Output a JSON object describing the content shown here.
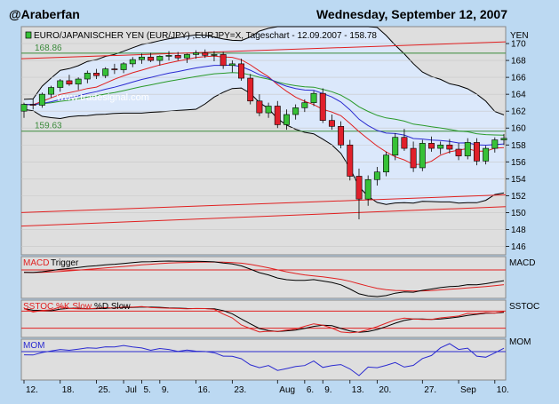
{
  "header": {
    "left": "@Araberfan",
    "right": "Wednesday, September 12, 2007"
  },
  "colors": {
    "background": "#bcd9f2",
    "pane": "#dedede",
    "band_fill": "#dbe8fb",
    "up_candle": "#37c137",
    "down_candle": "#e0202b",
    "ma_long": "#2a9a2a",
    "ma_mid": "#e02020",
    "ma_short": "#2a2ad0",
    "bollinger": "#000000",
    "level_line": "#3a8a3a",
    "channel": "#e02020"
  },
  "chart_data": [
    {
      "type": "candlestick",
      "title": "EURO/JAPANISCHER YEN (EUR/JPY) ,EURJPY=X, Tageschart - 12.09.2007 - 158.78",
      "ylabel": "YEN",
      "watermark": "www.tradesignal.com",
      "ylim": [
        145,
        172
      ],
      "y_ticks": [
        "146",
        "148",
        "150",
        "152",
        "154",
        "156",
        "158",
        "160",
        "162",
        "164",
        "166",
        "168",
        "170"
      ],
      "x_ticks": [
        "12.",
        "18.",
        "25.",
        "Jul",
        "5.",
        "9.",
        "16.",
        "23.",
        "Aug",
        "6.",
        "9.",
        "13.",
        "20.",
        "27.",
        "Sep",
        "10."
      ],
      "levels": [
        {
          "label": "168.86",
          "value": 168.86
        },
        {
          "label": "159.63",
          "value": 159.63
        }
      ],
      "candles": [
        [
          162.0,
          163.0,
          161.2,
          162.8
        ],
        [
          162.8,
          163.5,
          162.2,
          162.7
        ],
        [
          162.7,
          164.2,
          162.4,
          164.0
        ],
        [
          164.0,
          165.0,
          163.6,
          164.8
        ],
        [
          164.8,
          165.8,
          164.3,
          165.6
        ],
        [
          165.6,
          166.3,
          165.0,
          165.2
        ],
        [
          165.2,
          166.0,
          164.5,
          165.8
        ],
        [
          165.8,
          166.8,
          165.3,
          166.5
        ],
        [
          166.5,
          167.0,
          165.8,
          166.2
        ],
        [
          166.2,
          167.2,
          165.9,
          167.0
        ],
        [
          167.0,
          167.6,
          166.4,
          166.9
        ],
        [
          166.9,
          167.8,
          166.5,
          167.6
        ],
        [
          167.6,
          168.4,
          167.2,
          168.1
        ],
        [
          168.1,
          168.8,
          167.6,
          168.4
        ],
        [
          168.4,
          168.9,
          167.8,
          168.0
        ],
        [
          168.0,
          168.6,
          167.4,
          168.5
        ],
        [
          168.5,
          169.1,
          168.0,
          168.6
        ],
        [
          168.6,
          169.0,
          168.0,
          168.3
        ],
        [
          168.3,
          168.8,
          167.7,
          168.7
        ],
        [
          168.7,
          169.2,
          168.2,
          168.9
        ],
        [
          168.9,
          169.3,
          168.3,
          168.6
        ],
        [
          168.6,
          169.1,
          167.9,
          168.7
        ],
        [
          168.7,
          169.0,
          167.0,
          167.4
        ],
        [
          167.4,
          168.0,
          166.6,
          167.6
        ],
        [
          167.6,
          168.2,
          165.6,
          165.9
        ],
        [
          165.9,
          166.4,
          162.8,
          163.2
        ],
        [
          163.2,
          164.0,
          161.4,
          161.8
        ],
        [
          161.8,
          163.0,
          161.2,
          162.6
        ],
        [
          162.6,
          163.2,
          160.0,
          160.4
        ],
        [
          160.4,
          162.2,
          159.8,
          161.6
        ],
        [
          161.6,
          162.8,
          161.0,
          162.4
        ],
        [
          162.4,
          163.4,
          161.9,
          163.0
        ],
        [
          163.0,
          164.4,
          162.6,
          164.1
        ],
        [
          164.1,
          164.7,
          160.6,
          160.9
        ],
        [
          160.9,
          161.6,
          159.8,
          160.2
        ],
        [
          160.2,
          160.8,
          157.6,
          158.0
        ],
        [
          158.0,
          158.6,
          153.8,
          154.3
        ],
        [
          154.3,
          155.2,
          149.2,
          151.6
        ],
        [
          151.6,
          154.4,
          150.8,
          153.9
        ],
        [
          153.9,
          155.4,
          153.2,
          154.8
        ],
        [
          154.8,
          157.2,
          154.3,
          156.8
        ],
        [
          156.8,
          159.4,
          156.2,
          158.9
        ],
        [
          158.9,
          159.9,
          157.3,
          157.6
        ],
        [
          157.6,
          158.4,
          154.8,
          155.3
        ],
        [
          155.3,
          158.6,
          154.9,
          158.2
        ],
        [
          158.2,
          159.0,
          157.2,
          157.6
        ],
        [
          157.6,
          158.4,
          156.9,
          158.0
        ],
        [
          158.0,
          158.7,
          157.0,
          157.5
        ],
        [
          157.5,
          158.2,
          156.2,
          156.7
        ],
        [
          156.7,
          158.8,
          156.3,
          158.3
        ],
        [
          158.3,
          158.8,
          155.6,
          156.1
        ],
        [
          156.1,
          157.9,
          155.7,
          157.6
        ],
        [
          157.6,
          158.9,
          157.1,
          158.6
        ],
        [
          158.6,
          159.3,
          158.0,
          158.78
        ]
      ]
    },
    {
      "type": "line",
      "title": "MACD Trigger",
      "series_labels": [
        "MACD",
        "Trigger"
      ],
      "ylabel": "MACD"
    },
    {
      "type": "line",
      "title": "SSTOC %K Slow %D Slow",
      "series_labels": [
        "SSTOC %K Slow",
        "%D Slow"
      ],
      "ylabel": "SSTOC"
    },
    {
      "type": "line",
      "title": "MOM",
      "ylabel": "MOM"
    }
  ]
}
